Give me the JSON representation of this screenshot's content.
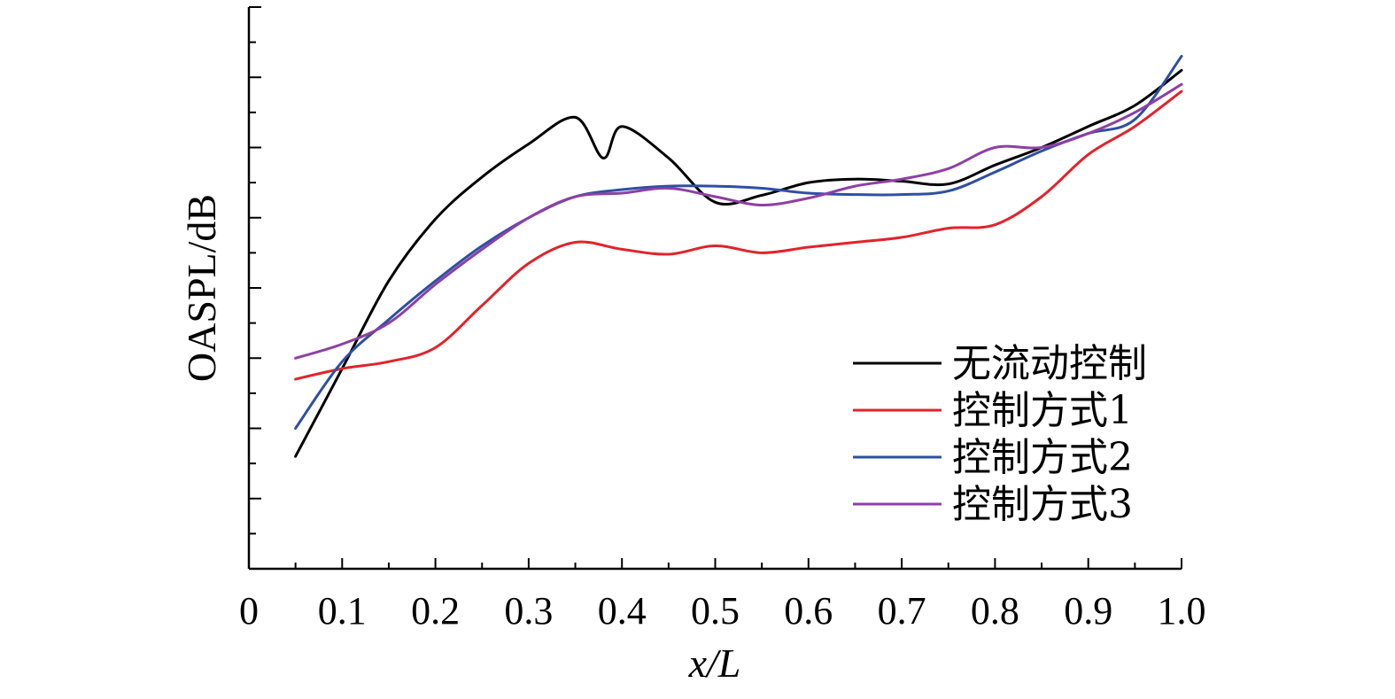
{
  "chart_data": {
    "type": "line",
    "xlabel": "x/L",
    "ylabel": "OASPL/dB",
    "xlim": [
      0,
      1.0
    ],
    "ylim": [
      0,
      8
    ],
    "x_tick_labels": [
      "0",
      "0.1",
      "0.2",
      "0.3",
      "0.4",
      "0.5",
      "0.6",
      "0.7",
      "0.8",
      "0.9",
      "1.0"
    ],
    "x_ticks": [
      0,
      0.1,
      0.2,
      0.3,
      0.4,
      0.5,
      0.6,
      0.7,
      0.8,
      0.9,
      1.0
    ],
    "y_tick_labels_shown": false,
    "grid": false,
    "legend_position": "bottom-right",
    "series": [
      {
        "name": "无流动控制",
        "color": "#000000",
        "x": [
          0.05,
          0.1,
          0.15,
          0.2,
          0.25,
          0.3,
          0.35,
          0.38,
          0.4,
          0.45,
          0.5,
          0.55,
          0.6,
          0.65,
          0.7,
          0.75,
          0.8,
          0.85,
          0.9,
          0.95,
          1.0
        ],
        "y": [
          1.6,
          2.85,
          4.1,
          4.98,
          5.58,
          6.05,
          6.43,
          5.85,
          6.3,
          5.85,
          5.22,
          5.32,
          5.5,
          5.55,
          5.52,
          5.48,
          5.75,
          6.0,
          6.3,
          6.6,
          7.1
        ]
      },
      {
        "name": "控制方式1",
        "color": "#e2232a",
        "x": [
          0.05,
          0.1,
          0.15,
          0.2,
          0.25,
          0.3,
          0.35,
          0.4,
          0.45,
          0.5,
          0.55,
          0.6,
          0.65,
          0.7,
          0.75,
          0.8,
          0.85,
          0.9,
          0.95,
          1.0
        ],
        "y": [
          2.7,
          2.85,
          2.95,
          3.15,
          3.75,
          4.35,
          4.65,
          4.55,
          4.48,
          4.6,
          4.5,
          4.58,
          4.65,
          4.72,
          4.85,
          4.9,
          5.3,
          5.9,
          6.3,
          6.8
        ]
      },
      {
        "name": "控制方式2",
        "color": "#2f4fa3",
        "x": [
          0.05,
          0.1,
          0.15,
          0.2,
          0.25,
          0.3,
          0.35,
          0.4,
          0.45,
          0.5,
          0.55,
          0.6,
          0.65,
          0.7,
          0.75,
          0.8,
          0.85,
          0.9,
          0.95,
          1.0
        ],
        "y": [
          2.0,
          2.95,
          3.55,
          4.1,
          4.6,
          5.0,
          5.3,
          5.4,
          5.45,
          5.45,
          5.42,
          5.35,
          5.33,
          5.33,
          5.38,
          5.65,
          5.95,
          6.2,
          6.4,
          7.3
        ]
      },
      {
        "name": "控制方式3",
        "color": "#8e3fa6",
        "x": [
          0.05,
          0.1,
          0.15,
          0.2,
          0.25,
          0.3,
          0.35,
          0.4,
          0.45,
          0.5,
          0.55,
          0.6,
          0.65,
          0.7,
          0.75,
          0.8,
          0.85,
          0.9,
          0.95,
          1.0
        ],
        "y": [
          3.0,
          3.2,
          3.5,
          4.05,
          4.55,
          5.0,
          5.3,
          5.35,
          5.42,
          5.3,
          5.18,
          5.28,
          5.45,
          5.55,
          5.7,
          6.0,
          6.0,
          6.2,
          6.5,
          6.9
        ]
      }
    ]
  }
}
